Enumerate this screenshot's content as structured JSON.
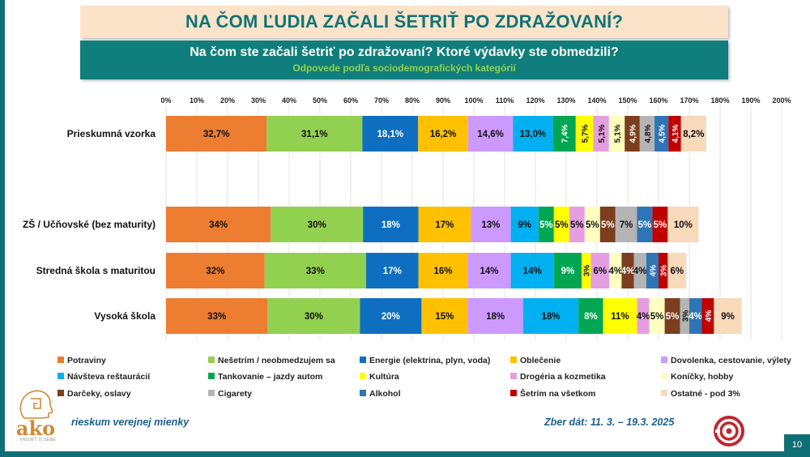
{
  "header": {
    "title": "NA ČOM ĽUDIA ZAČALI ŠETRIŤ PO ZDRAŽOVANÍ?",
    "question": "Na čom ste začali šetriť po zdražovaní? Ktoré výdavky ste obmedzili?",
    "note": "Odpovede podľa sociodemografických kategórií"
  },
  "footer": {
    "left_text": "rieskum verejnej mienky",
    "right_text": "Zber dát: 11. 3. – 19.3. 2025",
    "logo_text": "ako",
    "logo_tagline": "VEDIEŤ O SEBE",
    "page_number": "10"
  },
  "chart_data": {
    "type": "bar",
    "orientation": "horizontal",
    "stacked": true,
    "xlim": [
      0,
      200
    ],
    "xticks": [
      "0%",
      "10%",
      "20%",
      "30%",
      "40%",
      "50%",
      "60%",
      "70%",
      "80%",
      "90%",
      "100%",
      "110%",
      "120%",
      "130%",
      "140%",
      "150%",
      "160%",
      "170%",
      "180%",
      "190%",
      "200%"
    ],
    "categories": [
      "Prieskumná vzorka",
      "ZŠ / Učňovské (bez maturity)",
      "Stredná škola s maturitou",
      "Vysoká škola"
    ],
    "series": [
      {
        "name": "Potraviny",
        "color": "#ed7d31",
        "values": [
          32.7,
          34,
          32,
          33
        ],
        "labels": [
          "32,7%",
          "34%",
          "32%",
          "33%"
        ]
      },
      {
        "name": "Nešetrím / neobmedzujem sa",
        "color": "#92d050",
        "values": [
          31.1,
          30,
          33,
          30
        ],
        "labels": [
          "31,1%",
          "30%",
          "33%",
          "30%"
        ]
      },
      {
        "name": "Energie (elektrina, plyn, voda)",
        "color": "#0e6fc1",
        "values": [
          18.1,
          18,
          17,
          20
        ],
        "labels": [
          "18,1%",
          "18%",
          "17%",
          "20%"
        ]
      },
      {
        "name": "Oblečenie",
        "color": "#ffc000",
        "values": [
          16.2,
          17,
          16,
          15
        ],
        "labels": [
          "16,2%",
          "17%",
          "16%",
          "15%"
        ]
      },
      {
        "name": "Dovolenka, cestovanie, výlety",
        "color": "#cc99ff",
        "values": [
          14.6,
          13,
          14,
          18
        ],
        "labels": [
          "14,6%",
          "13%",
          "14%",
          "18%"
        ]
      },
      {
        "name": "Návšteva reštaurácií",
        "color": "#00b0f0",
        "values": [
          13.0,
          9,
          14,
          18
        ],
        "labels": [
          "13,0%",
          "9%",
          "14%",
          "18%"
        ]
      },
      {
        "name": "Tankovanie – jazdy autom",
        "color": "#00a651",
        "values": [
          7.4,
          5,
          9,
          8
        ],
        "labels": [
          "7,4%",
          "5%",
          "9%",
          "8%"
        ]
      },
      {
        "name": "Kultúra",
        "color": "#ffff00",
        "values": [
          5.7,
          5,
          3,
          11
        ],
        "labels": [
          "5,7%",
          "5%",
          "3%",
          "11%"
        ]
      },
      {
        "name": "Drogéria a kozmetika",
        "color": "#e59ee0",
        "values": [
          5.1,
          5,
          6,
          4
        ],
        "labels": [
          "5,1%",
          "5%",
          "6%",
          "4%"
        ]
      },
      {
        "name": "Koníčky, hobby",
        "color": "#ffffc0",
        "values": [
          5.1,
          5,
          4,
          5
        ],
        "labels": [
          "5,1%",
          "5%",
          "4%",
          "5%"
        ]
      },
      {
        "name": "Darčeky, oslavy",
        "color": "#7b3f1f",
        "values": [
          4.9,
          5,
          4,
          5
        ],
        "labels": [
          "4,9%",
          "5%",
          "4%",
          "5%"
        ]
      },
      {
        "name": "Cigarety",
        "color": "#b4b4b4",
        "values": [
          4.8,
          7,
          4,
          3
        ],
        "labels": [
          "4,8%",
          "7%",
          "4%",
          "3%"
        ]
      },
      {
        "name": "Alkohol",
        "color": "#2e75b6",
        "values": [
          4.5,
          5,
          4,
          4
        ],
        "labels": [
          "4,5%",
          "5%",
          "4%",
          "4%"
        ]
      },
      {
        "name": "Šetrím na všetkom",
        "color": "#c00000",
        "values": [
          4.1,
          5,
          3,
          4
        ],
        "labels": [
          "4,1%",
          "5%",
          "3%",
          "4%"
        ]
      },
      {
        "name": "Ostatné - pod 3%",
        "color": "#f8d9b9",
        "values": [
          8.2,
          10,
          6,
          9
        ],
        "labels": [
          "8,2%",
          "10%",
          "6%",
          "9%"
        ]
      }
    ]
  }
}
